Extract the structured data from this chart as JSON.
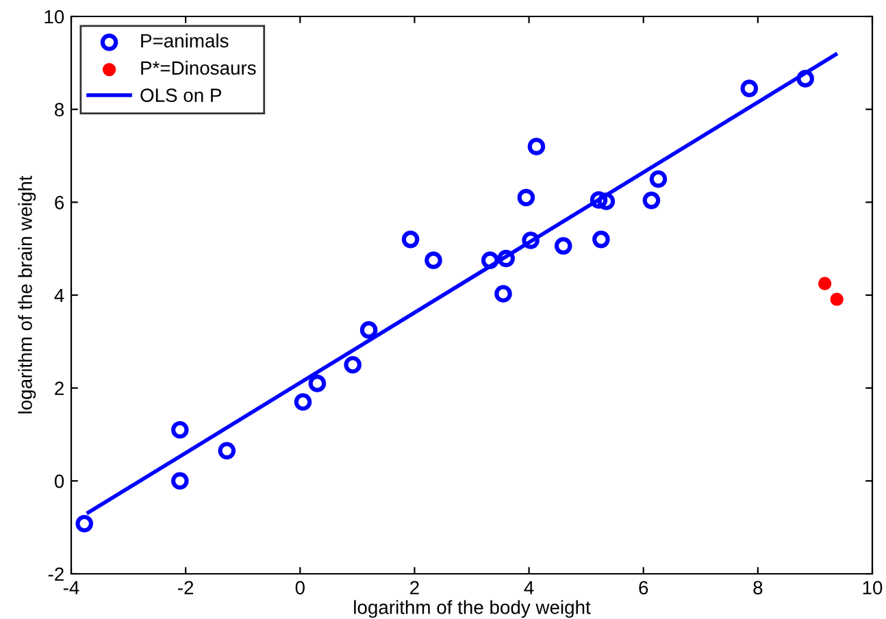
{
  "chart_data": {
    "type": "scatter",
    "xlabel": "logarithm of the body weight",
    "ylabel": "logarithm of the brain weight",
    "xlim": [
      -4,
      10
    ],
    "xticks": [
      -4,
      -2,
      0,
      2,
      4,
      6,
      8,
      10
    ],
    "ylim": [
      -2,
      10
    ],
    "yticks": [
      -2,
      0,
      2,
      4,
      6,
      8,
      10
    ],
    "grid": false,
    "legend": "top left",
    "series": [
      {
        "name": "P=animals",
        "color": "#0000ff",
        "marker": "circle",
        "x": [
          -3.77,
          -2.1,
          -2.1,
          -1.28,
          0.05,
          0.3,
          0.92,
          1.2,
          1.93,
          2.33,
          3.32,
          3.6,
          3.55,
          3.95,
          4.03,
          4.13,
          4.6,
          5.22,
          5.35,
          5.26,
          6.14,
          6.26,
          7.85,
          8.83
        ],
        "values": [
          -0.92,
          1.1,
          0.0,
          0.65,
          1.7,
          2.1,
          2.5,
          3.25,
          5.2,
          4.75,
          4.75,
          4.79,
          4.03,
          6.1,
          5.18,
          7.2,
          5.06,
          6.05,
          6.02,
          5.2,
          6.04,
          6.5,
          8.45,
          8.66
        ]
      },
      {
        "name": "P*=Dinosaurs",
        "color": "#ff0000",
        "marker": "circle",
        "x": [
          9.17,
          9.38
        ],
        "values": [
          4.25,
          3.91
        ]
      },
      {
        "name": "OLS on P",
        "color": "#0000ff",
        "type": "line",
        "marker": "none",
        "x": [
          -3.7,
          9.36
        ],
        "values": [
          -0.68,
          9.18
        ]
      }
    ]
  }
}
